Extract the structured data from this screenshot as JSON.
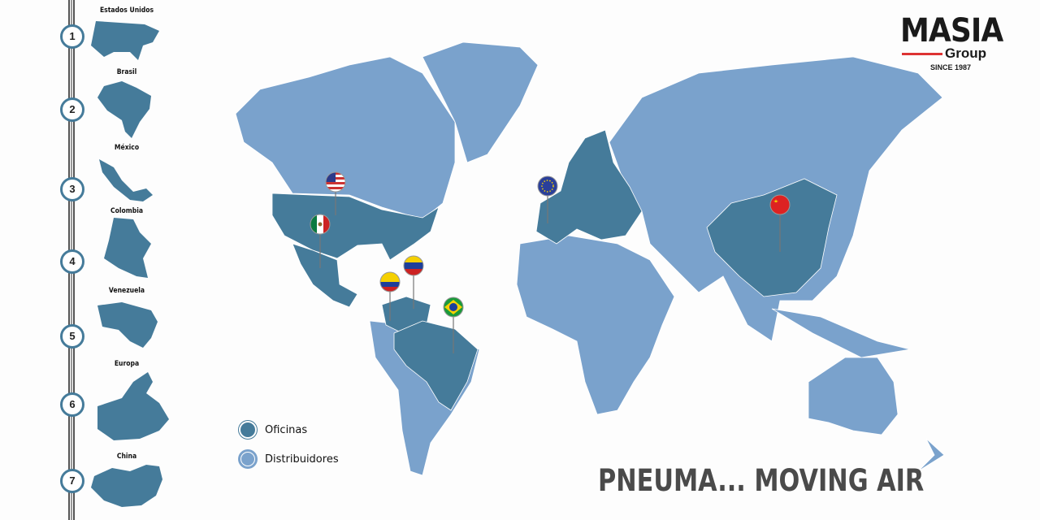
{
  "sidebar": {
    "items": [
      {
        "number": "1",
        "label": "Estados Unidos"
      },
      {
        "number": "2",
        "label": "Brasil"
      },
      {
        "number": "3",
        "label": "México"
      },
      {
        "number": "4",
        "label": "Colombia"
      },
      {
        "number": "5",
        "label": "Venezuela"
      },
      {
        "number": "6",
        "label": "Europa"
      },
      {
        "number": "7",
        "label": "China"
      }
    ]
  },
  "logo": {
    "name": "MASIA",
    "group": "Group",
    "since": "SINCE 1987"
  },
  "legend": {
    "offices": "Oficinas",
    "distributors": "Distribuidores"
  },
  "slogan": "PNEUMA... MOVING AIR",
  "colors": {
    "offices": "#457b9a",
    "distributors": "#7aa2cc",
    "accent": "#d33333"
  },
  "pins": [
    "us-flag",
    "mexico-flag",
    "colombia-flag",
    "venezuela-flag",
    "brazil-flag",
    "eu-flag",
    "china-flag"
  ]
}
